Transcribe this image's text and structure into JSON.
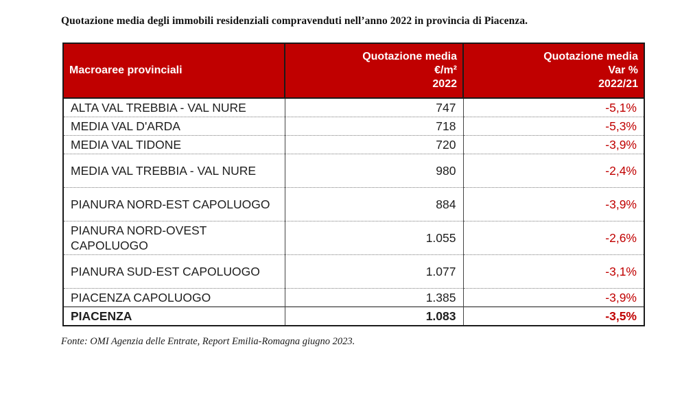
{
  "title": "Quotazione media degli immobili residenziali compravenduti nell’anno 2022 in provincia di Piacenza.",
  "table": {
    "header": {
      "col1": "Macroaree provinciali",
      "col2": [
        "Quotazione media",
        "€/m²",
        "2022"
      ],
      "col3": [
        "Quotazione media",
        "Var %",
        "2022/21"
      ]
    },
    "rows": [
      {
        "area": "ALTA VAL TREBBIA - VAL NURE",
        "value": "747",
        "change": "-5,1%"
      },
      {
        "area": "MEDIA VAL D'ARDA",
        "value": "718",
        "change": "-5,3%"
      },
      {
        "area": "MEDIA VAL TIDONE",
        "value": "720",
        "change": "-3,9%"
      },
      {
        "area": "MEDIA VAL TREBBIA - VAL NURE",
        "value": "980",
        "change": "-2,4%"
      },
      {
        "area": "PIANURA NORD-EST CAPOLUOGO",
        "value": "884",
        "change": "-3,9%"
      },
      {
        "area": "PIANURA NORD-OVEST CAPOLUOGO",
        "value": "1.055",
        "change": "-2,6%"
      },
      {
        "area": "PIANURA SUD-EST CAPOLUOGO",
        "value": "1.077",
        "change": "-3,1%"
      },
      {
        "area": "PIACENZA CAPOLUOGO",
        "value": "1.385",
        "change": "-3,9%"
      }
    ],
    "total": {
      "area": "PIACENZA",
      "value": "1.083",
      "change": "-3,5%"
    }
  },
  "source": "Fonte: OMI Agenzia delle Entrate, Report Emilia-Romagna giugno 2023.",
  "colors": {
    "header_bg": "#c00000",
    "header_text": "#ffffff",
    "change_text": "#c00000",
    "border": "#1a1a1a"
  }
}
